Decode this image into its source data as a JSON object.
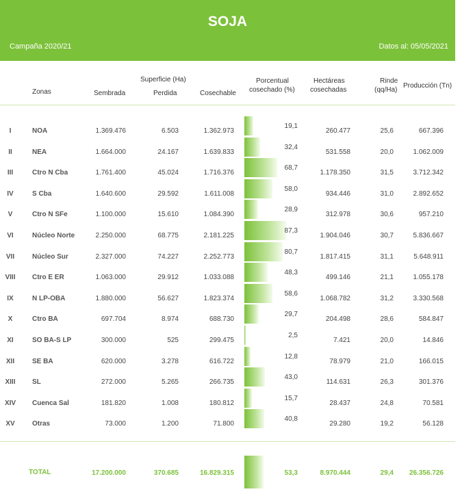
{
  "header": {
    "title": "SOJA",
    "campaign": "Campaña 2020/21",
    "date": "Datos al: 05/05/2021",
    "color": "#7cc13a"
  },
  "columns": {
    "zonas": "Zonas",
    "superficie": "Superficie (Ha)",
    "sembrada": "Sembrada",
    "perdida": "Perdida",
    "cosechable": "Cosechable",
    "porcentual_1": "Porcentual",
    "porcentual_2": "cosechado (%)",
    "hectareas_1": "Hectáreas",
    "hectareas_2": "cosechadas",
    "rinde_1": "Rinde",
    "rinde_2": "(qq/Ha)",
    "produccion": "Producción (Tn)"
  },
  "rows": [
    {
      "num": "I",
      "zona": "NOA",
      "sembrada": "1.369.476",
      "perdida": "6.503",
      "cosechable": "1.362.973",
      "pct": "19,1",
      "pct_value": 19.1,
      "hectareas": "260.477",
      "rinde": "25,6",
      "produccion": "667.396"
    },
    {
      "num": "II",
      "zona": "NEA",
      "sembrada": "1.664.000",
      "perdida": "24.167",
      "cosechable": "1.639.833",
      "pct": "32,4",
      "pct_value": 32.4,
      "hectareas": "531.558",
      "rinde": "20,0",
      "produccion": "1.062.009"
    },
    {
      "num": "III",
      "zona": "Ctro N Cba",
      "sembrada": "1.761.400",
      "perdida": "45.024",
      "cosechable": "1.716.376",
      "pct": "68,7",
      "pct_value": 68.7,
      "hectareas": "1.178.350",
      "rinde": "31,5",
      "produccion": "3.712.342"
    },
    {
      "num": "IV",
      "zona": "S Cba",
      "sembrada": "1.640.600",
      "perdida": "29.592",
      "cosechable": "1.611.008",
      "pct": "58,0",
      "pct_value": 58.0,
      "hectareas": "934.446",
      "rinde": "31,0",
      "produccion": "2.892.652"
    },
    {
      "num": "V",
      "zona": "Ctro N SFe",
      "sembrada": "1.100.000",
      "perdida": "15.610",
      "cosechable": "1.084.390",
      "pct": "28,9",
      "pct_value": 28.9,
      "hectareas": "312.978",
      "rinde": "30,6",
      "produccion": "957.210"
    },
    {
      "num": "VI",
      "zona": "Núcleo Norte",
      "sembrada": "2.250.000",
      "perdida": "68.775",
      "cosechable": "2.181.225",
      "pct": "87,3",
      "pct_value": 87.3,
      "hectareas": "1.904.046",
      "rinde": "30,7",
      "produccion": "5.836.667"
    },
    {
      "num": "VII",
      "zona": "Núcleo Sur",
      "sembrada": "2.327.000",
      "perdida": "74.227",
      "cosechable": "2.252.773",
      "pct": "80,7",
      "pct_value": 80.7,
      "hectareas": "1.817.415",
      "rinde": "31,1",
      "produccion": "5.648.911"
    },
    {
      "num": "VIII",
      "zona": "Ctro E ER",
      "sembrada": "1.063.000",
      "perdida": "29.912",
      "cosechable": "1.033.088",
      "pct": "48,3",
      "pct_value": 48.3,
      "hectareas": "499.146",
      "rinde": "21,1",
      "produccion": "1.055.178"
    },
    {
      "num": "IX",
      "zona": "N LP-OBA",
      "sembrada": "1.880.000",
      "perdida": "56.627",
      "cosechable": "1.823.374",
      "pct": "58,6",
      "pct_value": 58.6,
      "hectareas": "1.068.782",
      "rinde": "31,2",
      "produccion": "3.330.568"
    },
    {
      "num": "X",
      "zona": "Ctro BA",
      "sembrada": "697.704",
      "perdida": "8.974",
      "cosechable": "688.730",
      "pct": "29,7",
      "pct_value": 29.7,
      "hectareas": "204.498",
      "rinde": "28,6",
      "produccion": "584.847"
    },
    {
      "num": "XI",
      "zona": "SO BA-S LP",
      "sembrada": "300.000",
      "perdida": "525",
      "cosechable": "299.475",
      "pct": "2,5",
      "pct_value": 2.5,
      "hectareas": "7.421",
      "rinde": "20,0",
      "produccion": "14.846"
    },
    {
      "num": "XII",
      "zona": "SE BA",
      "sembrada": "620.000",
      "perdida": "3.278",
      "cosechable": "616.722",
      "pct": "12,8",
      "pct_value": 12.8,
      "hectareas": "78.979",
      "rinde": "21,0",
      "produccion": "166.015"
    },
    {
      "num": "XIII",
      "zona": "SL",
      "sembrada": "272.000",
      "perdida": "5.265",
      "cosechable": "266.735",
      "pct": "43,0",
      "pct_value": 43.0,
      "hectareas": "114.631",
      "rinde": "26,3",
      "produccion": "301.376"
    },
    {
      "num": "XIV",
      "zona": "Cuenca Sal",
      "sembrada": "181.820",
      "perdida": "1.008",
      "cosechable": "180.812",
      "pct": "15,7",
      "pct_value": 15.7,
      "hectareas": "28.437",
      "rinde": "24,8",
      "produccion": "70.581"
    },
    {
      "num": "XV",
      "zona": "Otras",
      "sembrada": "73.000",
      "perdida": "1.200",
      "cosechable": "71.800",
      "pct": "40,8",
      "pct_value": 40.8,
      "hectareas": "29.280",
      "rinde": "19,2",
      "produccion": "56.128"
    }
  ],
  "total": {
    "label": "TOTAL",
    "sembrada": "17.200.000",
    "perdida": "370.685",
    "cosechable": "16.829.315",
    "pct": "53,3",
    "pct_value": 53.3,
    "hectareas": "8.970.444",
    "rinde": "29,4",
    "produccion": "26.356.726"
  }
}
